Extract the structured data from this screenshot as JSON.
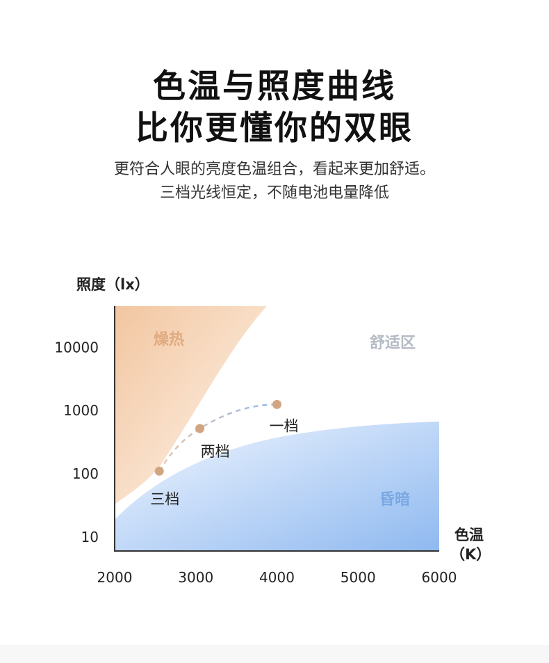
{
  "header": {
    "title_line1": "色温与照度曲线",
    "title_line2": "比你更懂你的双眼",
    "subtitle_line1": "更符合人眼的亮度色温组合，看起来更加舒适。",
    "subtitle_line2": "三档光线恒定，不随电池电量降低"
  },
  "chart_data": {
    "type": "scatter",
    "scale_y": "log",
    "ylabel": "照度（lx）",
    "xlabel_line1": "色温",
    "xlabel_line2": "（K）",
    "x_ticks": [
      2000,
      3000,
      4000,
      5000,
      6000
    ],
    "y_ticks": [
      10,
      100,
      1000,
      10000
    ],
    "xlim": [
      2000,
      6000
    ],
    "ylim": [
      6,
      45000
    ],
    "points": [
      {
        "label": "一档",
        "x": 4000,
        "y": 1250
      },
      {
        "label": "两档",
        "x": 3050,
        "y": 520
      },
      {
        "label": "三档",
        "x": 2550,
        "y": 110
      }
    ],
    "regions": [
      {
        "label": "燥热",
        "color": "#f2c6a0",
        "text_color": "#e0ab80"
      },
      {
        "label": "舒适区",
        "color": "#ffffff",
        "text_color": "#b4bac3"
      },
      {
        "label": "昏暗",
        "color": "#8fb9f0",
        "text_color": "#7aa8e2"
      }
    ],
    "point_color": "#d2a582",
    "grid": false
  }
}
